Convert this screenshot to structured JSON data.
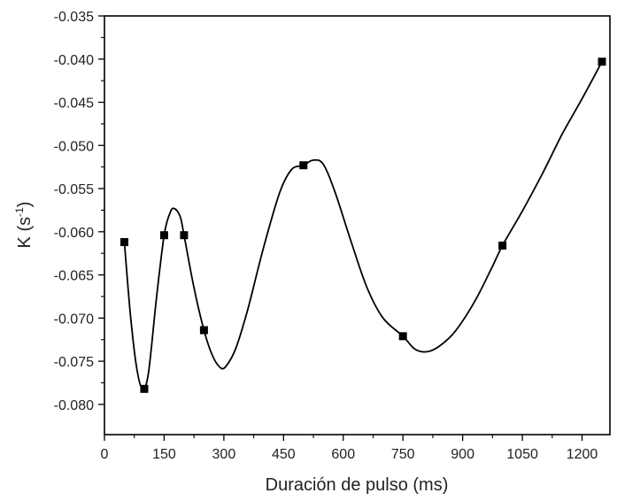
{
  "chart_data": {
    "type": "scatter",
    "xlabel": "Duración de pulso (ms)",
    "ylabel": {
      "prefix": "K (s",
      "superscript": "-1",
      "suffix": ")"
    },
    "xlim": [
      0,
      1270
    ],
    "ylim": [
      -0.0835,
      -0.035
    ],
    "xticks": [
      {
        "value": 0,
        "label": "0"
      },
      {
        "value": 150,
        "label": "150"
      },
      {
        "value": 300,
        "label": "300"
      },
      {
        "value": 450,
        "label": "450"
      },
      {
        "value": 600,
        "label": "600"
      },
      {
        "value": 750,
        "label": "750"
      },
      {
        "value": 900,
        "label": "900"
      },
      {
        "value": 1050,
        "label": "1050"
      },
      {
        "value": 1200,
        "label": "1200"
      }
    ],
    "yticks": [
      {
        "value": -0.035,
        "label": "-0.035"
      },
      {
        "value": -0.04,
        "label": "-0.040"
      },
      {
        "value": -0.045,
        "label": "-0.045"
      },
      {
        "value": -0.05,
        "label": "-0.050"
      },
      {
        "value": -0.055,
        "label": "-0.055"
      },
      {
        "value": -0.06,
        "label": "-0.060"
      },
      {
        "value": -0.065,
        "label": "-0.065"
      },
      {
        "value": -0.07,
        "label": "-0.070"
      },
      {
        "value": -0.075,
        "label": "-0.075"
      },
      {
        "value": -0.08,
        "label": "-0.080"
      }
    ],
    "points": [
      {
        "x": 50,
        "y": -0.0612
      },
      {
        "x": 100,
        "y": -0.0782
      },
      {
        "x": 150,
        "y": -0.0604
      },
      {
        "x": 200,
        "y": -0.0604
      },
      {
        "x": 250,
        "y": -0.0714
      },
      {
        "x": 500,
        "y": -0.0523
      },
      {
        "x": 750,
        "y": -0.0721
      },
      {
        "x": 1000,
        "y": -0.0616
      },
      {
        "x": 1250,
        "y": -0.0403
      }
    ],
    "fit_curve": [
      [
        50,
        -0.0612
      ],
      [
        65,
        -0.0695
      ],
      [
        80,
        -0.0755
      ],
      [
        95,
        -0.0782
      ],
      [
        110,
        -0.0765
      ],
      [
        130,
        -0.068
      ],
      [
        150,
        -0.0604
      ],
      [
        165,
        -0.0578
      ],
      [
        175,
        -0.0573
      ],
      [
        190,
        -0.0582
      ],
      [
        200,
        -0.0604
      ],
      [
        225,
        -0.0665
      ],
      [
        250,
        -0.0714
      ],
      [
        270,
        -0.0742
      ],
      [
        290,
        -0.0757
      ],
      [
        305,
        -0.0756
      ],
      [
        330,
        -0.0735
      ],
      [
        360,
        -0.069
      ],
      [
        400,
        -0.0618
      ],
      [
        440,
        -0.0555
      ],
      [
        470,
        -0.0528
      ],
      [
        500,
        -0.0523
      ],
      [
        525,
        -0.0517
      ],
      [
        550,
        -0.0522
      ],
      [
        580,
        -0.0555
      ],
      [
        620,
        -0.0612
      ],
      [
        660,
        -0.0665
      ],
      [
        700,
        -0.07
      ],
      [
        750,
        -0.0721
      ],
      [
        780,
        -0.0736
      ],
      [
        810,
        -0.0739
      ],
      [
        840,
        -0.0733
      ],
      [
        880,
        -0.0716
      ],
      [
        930,
        -0.0681
      ],
      [
        975,
        -0.064
      ],
      [
        1000,
        -0.0616
      ],
      [
        1050,
        -0.0576
      ],
      [
        1100,
        -0.0533
      ],
      [
        1150,
        -0.0487
      ],
      [
        1200,
        -0.0446
      ],
      [
        1250,
        -0.0403
      ]
    ],
    "marker": "square",
    "grid": false,
    "colors": {
      "line": "#000000",
      "marker": "#000000",
      "axis": "#000000"
    }
  }
}
